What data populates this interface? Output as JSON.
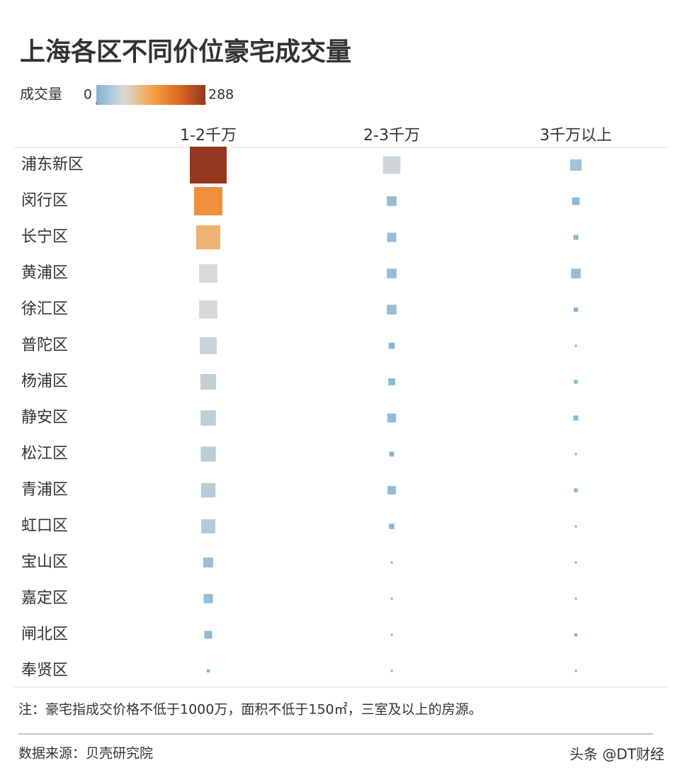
{
  "chart_data": {
    "type": "heatmap",
    "title": "上海各区不同价位豪宅成交量",
    "legend_title": "成交量",
    "colorlim": [
      0,
      288
    ],
    "colorticks": [
      0,
      288
    ],
    "colors": [
      "#7fb4d6",
      "#d9d9d9",
      "#f6a54a",
      "#e06a22",
      "#93381f"
    ],
    "categories": [
      "浦东新区",
      "闵行区",
      "长宁区",
      "黄浦区",
      "徐汇区",
      "普陀区",
      "杨浦区",
      "静安区",
      "松江区",
      "青浦区",
      "虹口区",
      "宝山区",
      "嘉定区",
      "闸北区",
      "奉贤区"
    ],
    "series": [
      {
        "name": "1-2千万",
        "values": [
          288,
          170,
          123,
          72,
          70,
          61,
          52,
          50,
          48,
          44,
          42,
          21,
          18,
          13,
          2
        ]
      },
      {
        "name": "2-3千万",
        "values": [
          65,
          20,
          18,
          20,
          20,
          8,
          10,
          17,
          5,
          15,
          6,
          1,
          1,
          1,
          1
        ]
      },
      {
        "name": "3千万以上",
        "values": [
          27,
          12,
          5,
          20,
          4,
          1,
          3,
          5,
          1,
          3,
          1,
          1,
          1,
          2,
          1
        ]
      }
    ]
  },
  "note": "注：豪宅指成交价格不低于1000万，面积不低于150㎡，三室及以上的房源。",
  "source": "数据来源：贝壳研究院",
  "watermark": "头条 @DT财经"
}
